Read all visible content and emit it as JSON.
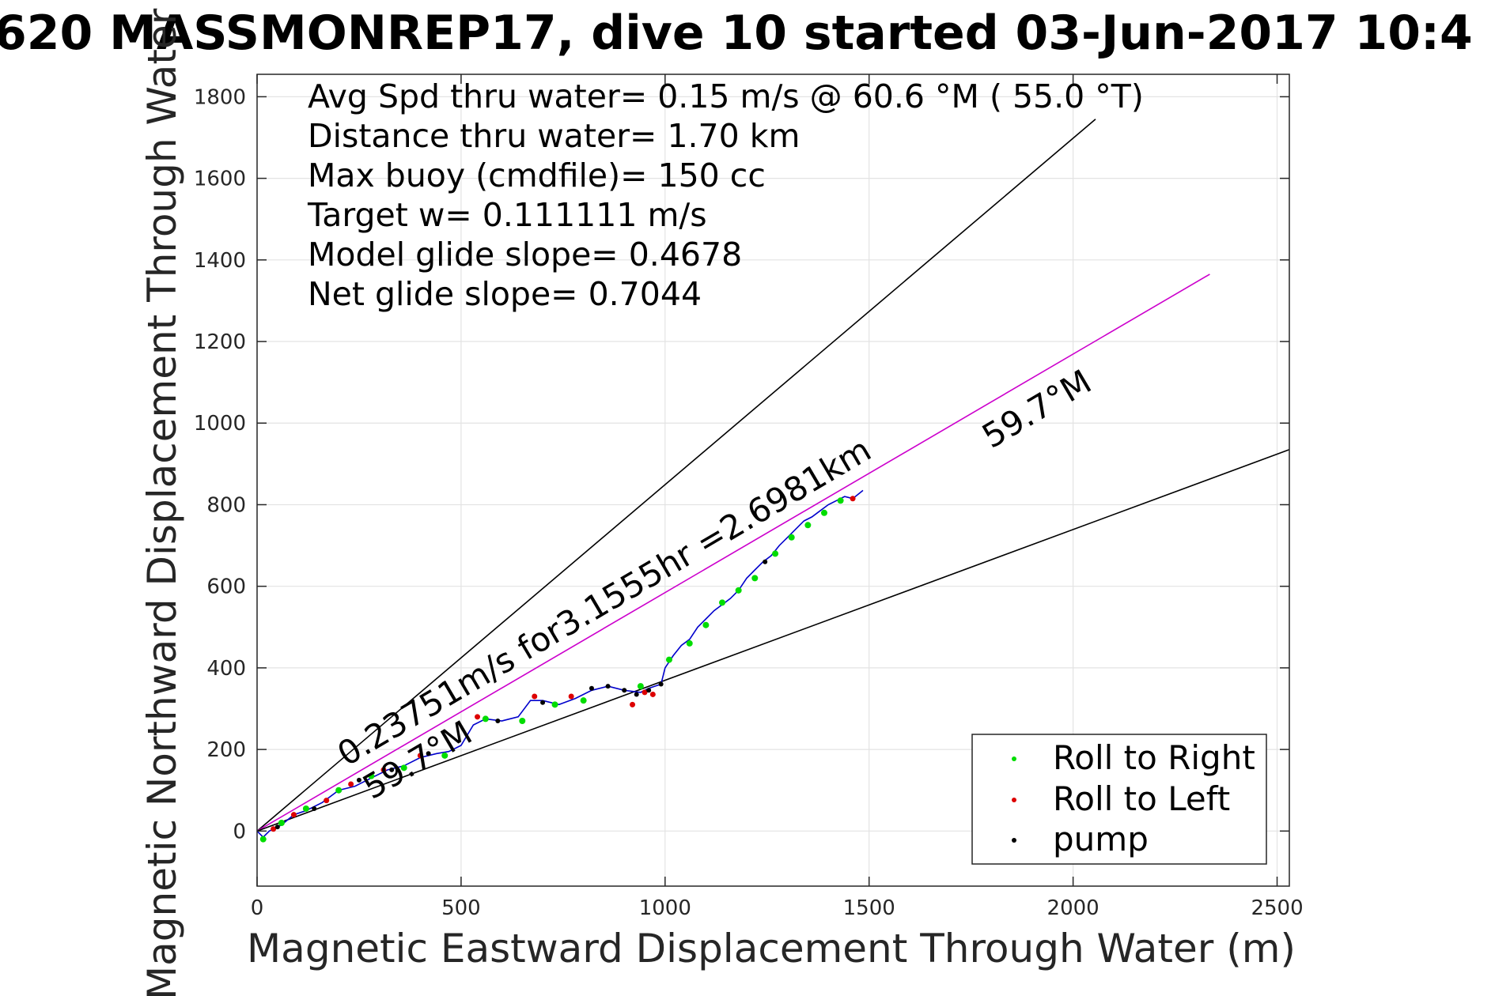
{
  "chart_data": {
    "type": "scatter",
    "title": "620 MASSMONREP17, dive 10 started 03-Jun-2017 10:4",
    "xlabel": "Magnetic Eastward Displacement Through Water (m)",
    "ylabel": "Magnetic Northward Displacement Through Water (",
    "xlim": [
      0,
      2530
    ],
    "ylim": [
      -135,
      1855
    ],
    "xticks": [
      0,
      500,
      1000,
      1500,
      2000,
      2500
    ],
    "yticks": [
      0,
      200,
      400,
      600,
      800,
      1000,
      1200,
      1400,
      1600,
      1800
    ],
    "grid": true,
    "legend_position": "bottom-right",
    "colors": {
      "roll_right": "#00dd00",
      "roll_left": "#dd0000",
      "pump": "#000000",
      "track": "#0000cc",
      "heading_line": "#cc00cc",
      "guide": "#000000"
    },
    "info_lines": [
      "Avg Spd thru water=  0.15 m/s @  60.6 °M ( 55.0 °T)",
      "Distance thru water=  1.70 km",
      "Max buoy (cmdfile)= 150 cc",
      "Target w= 0.111111 m/s",
      "Model glide slope= 0.4678",
      "Net glide slope= 0.7044"
    ],
    "rotated_labels": {
      "speed": "0.23751m/s for3.1555hr =2.6981km",
      "heading_upper": "59.7°M",
      "heading_lower": "59.7°M"
    },
    "lines": [
      {
        "name": "upper-guide",
        "x": [
          0,
          2055
        ],
        "y": [
          0,
          1745
        ],
        "color": "#000000"
      },
      {
        "name": "heading-line",
        "x": [
          0,
          2335
        ],
        "y": [
          0,
          1365
        ],
        "color": "#cc00cc"
      },
      {
        "name": "lower-guide",
        "x": [
          0,
          2530
        ],
        "y": [
          0,
          935
        ],
        "color": "#000000"
      }
    ],
    "track": {
      "x": [
        0,
        15,
        30,
        60,
        90,
        120,
        160,
        200,
        240,
        280,
        320,
        360,
        400,
        440,
        470,
        500,
        530,
        560,
        600,
        640,
        670,
        700,
        740,
        780,
        820,
        860,
        900,
        940,
        960,
        975,
        990,
        1000,
        1020,
        1040,
        1060,
        1080,
        1100,
        1120,
        1140,
        1160,
        1180,
        1200,
        1220,
        1240,
        1260,
        1280,
        1300,
        1320,
        1340,
        1360,
        1380,
        1400,
        1420,
        1440,
        1460,
        1485
      ],
      "y": [
        0,
        -15,
        0,
        15,
        40,
        50,
        70,
        100,
        110,
        130,
        150,
        160,
        180,
        190,
        195,
        210,
        260,
        275,
        270,
        280,
        320,
        320,
        310,
        325,
        345,
        355,
        345,
        340,
        350,
        355,
        360,
        400,
        430,
        455,
        470,
        500,
        520,
        540,
        555,
        570,
        590,
        620,
        640,
        660,
        675,
        700,
        720,
        740,
        760,
        770,
        785,
        800,
        810,
        820,
        815,
        835
      ]
    },
    "series": [
      {
        "name": "Roll to Right",
        "x": [
          15,
          60,
          120,
          200,
          280,
          360,
          460,
          560,
          650,
          730,
          800,
          940,
          1010,
          1060,
          1100,
          1140,
          1180,
          1220,
          1270,
          1310,
          1350,
          1390,
          1430
        ],
        "y": [
          -20,
          20,
          55,
          100,
          135,
          155,
          185,
          275,
          270,
          310,
          320,
          355,
          420,
          460,
          505,
          560,
          590,
          620,
          680,
          720,
          750,
          780,
          810
        ]
      },
      {
        "name": "Roll to Left",
        "x": [
          40,
          90,
          170,
          230,
          310,
          400,
          540,
          680,
          770,
          920,
          950,
          970,
          1460
        ],
        "y": [
          5,
          40,
          75,
          115,
          150,
          185,
          280,
          330,
          330,
          310,
          340,
          335,
          815
        ]
      },
      {
        "name": "pump",
        "x": [
          50,
          140,
          250,
          330,
          420,
          590,
          700,
          820,
          860,
          900,
          930,
          960,
          990,
          1245
        ],
        "y": [
          10,
          55,
          125,
          150,
          190,
          270,
          315,
          350,
          355,
          345,
          335,
          345,
          360,
          660
        ]
      }
    ]
  }
}
